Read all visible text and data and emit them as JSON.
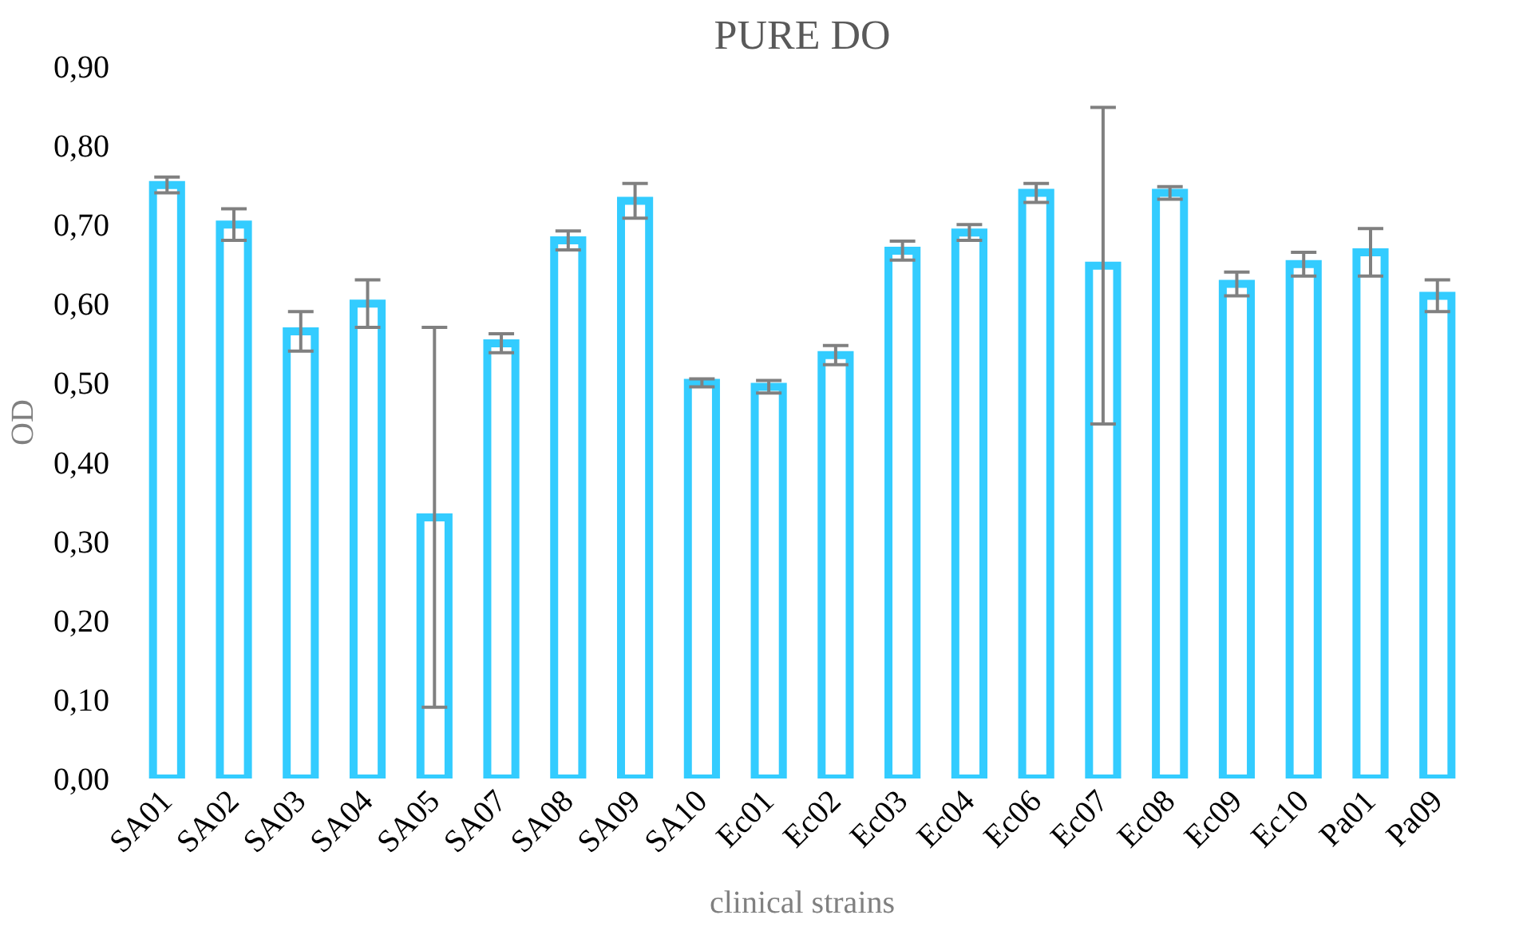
{
  "chart_data": {
    "type": "bar",
    "title": "PURE DO",
    "xlabel": "clinical strains",
    "ylabel": "OD",
    "categories": [
      "SA01",
      "SA02",
      "SA03",
      "SA04",
      "SA05",
      "SA07",
      "SA08",
      "SA09",
      "SA10",
      "Ec01",
      "Ec02",
      "Ec03",
      "Ec04",
      "Ec06",
      "Ec07",
      "Ec08",
      "Ec09",
      "Ec10",
      "Pa01",
      "Pa09"
    ],
    "values": [
      0.75,
      0.7,
      0.565,
      0.6,
      0.33,
      0.55,
      0.68,
      0.73,
      0.5,
      0.495,
      0.535,
      0.667,
      0.69,
      0.74,
      0.648,
      0.74,
      0.625,
      0.65,
      0.665,
      0.61
    ],
    "errors": [
      0.01,
      0.02,
      0.025,
      0.03,
      0.24,
      0.012,
      0.012,
      0.022,
      0.005,
      0.008,
      0.012,
      0.012,
      0.01,
      0.012,
      0.2,
      0.008,
      0.015,
      0.015,
      0.03,
      0.02
    ],
    "color": "#33ccff",
    "ylim": [
      0,
      0.9
    ],
    "yticks": [
      {
        "value": 0,
        "label": "0,00"
      },
      {
        "value": 0.1,
        "label": "0,10"
      },
      {
        "value": 0.2,
        "label": "0,20"
      },
      {
        "value": 0.3,
        "label": "0,30"
      },
      {
        "value": 0.4,
        "label": "0,40"
      },
      {
        "value": 0.5,
        "label": "0,50"
      },
      {
        "value": 0.6,
        "label": "0,60"
      },
      {
        "value": 0.7,
        "label": "0,70"
      },
      {
        "value": 0.8,
        "label": "0,80"
      },
      {
        "value": 0.9,
        "label": "0,90"
      }
    ],
    "grid": false
  }
}
